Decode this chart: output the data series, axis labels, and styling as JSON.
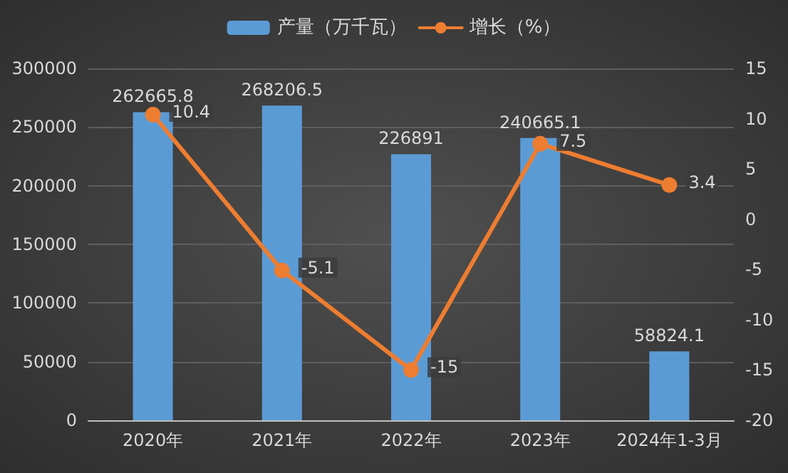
{
  "chart_data": {
    "type": "bar",
    "categories": [
      "2020年",
      "2021年",
      "2022年",
      "2023年",
      "2024年1-3月"
    ],
    "series": [
      {
        "name": "产量（万千瓦）",
        "color": "#5b9bd5",
        "values": [
          262665.8,
          268206.5,
          226891,
          240665.1,
          58824.1
        ]
      },
      {
        "name": "增长（%）",
        "type": "line",
        "axis": "y2",
        "color": "#ed7d31",
        "values": [
          10.4,
          -5.1,
          -15,
          7.5,
          3.4
        ]
      }
    ],
    "ylim": [
      0,
      300000
    ],
    "yticks": [
      0,
      50000,
      100000,
      150000,
      200000,
      250000,
      300000
    ],
    "y2lim": [
      -20,
      15
    ],
    "y2ticks": [
      -20,
      -15,
      -10,
      -5,
      0,
      5,
      10,
      15
    ],
    "data_labels": true,
    "grid": "y",
    "legend": "top",
    "marker": "circle",
    "line_style": "solid"
  }
}
